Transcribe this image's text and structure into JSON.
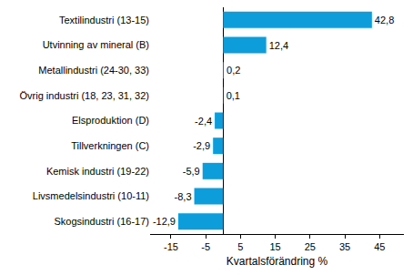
{
  "chart_data": {
    "type": "bar",
    "orientation": "horizontal",
    "x_label": "Kvartalsförändring %",
    "categories": [
      "Textilindustri (13-15)",
      "Utvinning av mineral (B)",
      "Metallindustri (24-30, 33)",
      "Övrig industri (18, 23, 31, 32)",
      "Elsproduktion (D)",
      "Tillverkningen (C)",
      "Kemisk industri (19-22)",
      "Livsmedelsindustri (10-11)",
      "Skogsindustri (16-17)"
    ],
    "values": [
      42.8,
      12.4,
      0.2,
      0.1,
      -2.4,
      -2.9,
      -5.9,
      -8.3,
      -12.9
    ],
    "value_labels": [
      "42,8",
      "12,4",
      "0,2",
      "0,1",
      "-2,4",
      "-2,9",
      "-5,9",
      "-8,3",
      "-12,9"
    ],
    "data_labels": true,
    "color": "#0d9ddb",
    "xlim": [
      -21,
      52
    ],
    "xticks": [
      -15,
      -5,
      5,
      15,
      25,
      35,
      45
    ],
    "grid": false
  }
}
